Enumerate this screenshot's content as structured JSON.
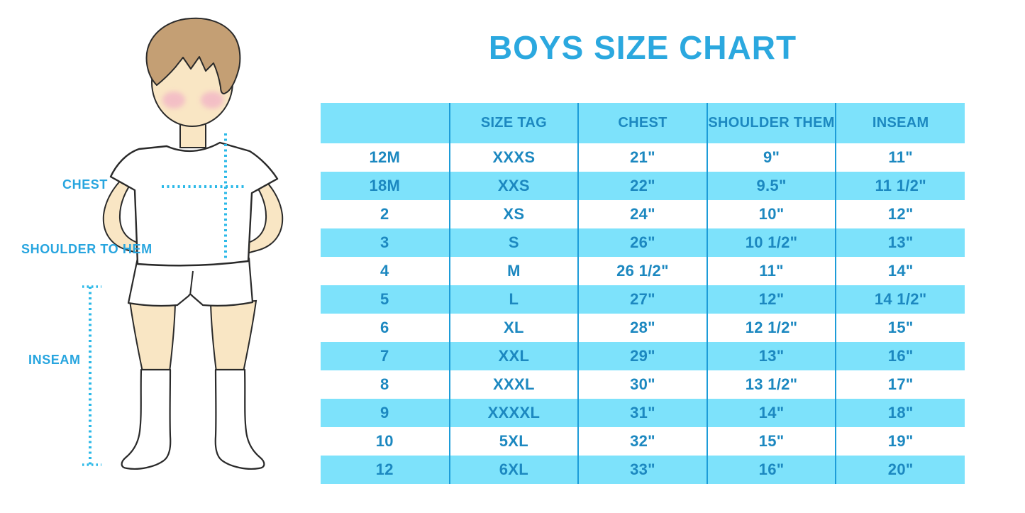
{
  "title": "BOYS SIZE CHART",
  "figure": {
    "labels": {
      "chest": "CHEST",
      "shoulder_to_hem": "SHOULDER TO HEM",
      "inseam": "INSEAM"
    }
  },
  "colors": {
    "title_blue": "#2BA8DF",
    "label_blue": "#27A5DF",
    "table_text_blue": "#1C88C0",
    "row_fill_blue": "#7DE2FB",
    "divider_blue": "#1D9CD8",
    "dotted_line_blue": "#2CB9E8",
    "skin": "#F9E6C4",
    "hair": "#C49F74",
    "blush": "#F3B9C6",
    "outline": "#2A2A2A"
  },
  "chart_data": {
    "type": "table",
    "title": "BOYS SIZE CHART",
    "columns": [
      "",
      "SIZE TAG",
      "CHEST",
      "SHOULDER THEM",
      "INSEAM"
    ],
    "rows": [
      [
        "12M",
        "XXXS",
        "21\"",
        "9\"",
        "11\""
      ],
      [
        "18M",
        "XXS",
        "22\"",
        "9.5\"",
        "11 1/2\""
      ],
      [
        "2",
        "XS",
        "24\"",
        "10\"",
        "12\""
      ],
      [
        "3",
        "S",
        "26\"",
        "10 1/2\"",
        "13\""
      ],
      [
        "4",
        "M",
        "26 1/2\"",
        "11\"",
        "14\""
      ],
      [
        "5",
        "L",
        "27\"",
        "12\"",
        "14 1/2\""
      ],
      [
        "6",
        "XL",
        "28\"",
        "12 1/2\"",
        "15\""
      ],
      [
        "7",
        "XXL",
        "29\"",
        "13\"",
        "16\""
      ],
      [
        "8",
        "XXXL",
        "30\"",
        "13 1/2\"",
        "17\""
      ],
      [
        "9",
        "XXXXL",
        "31\"",
        "14\"",
        "18\""
      ],
      [
        "10",
        "5XL",
        "32\"",
        "15\"",
        "19\""
      ],
      [
        "12",
        "6XL",
        "33\"",
        "16\"",
        "20\""
      ]
    ]
  }
}
